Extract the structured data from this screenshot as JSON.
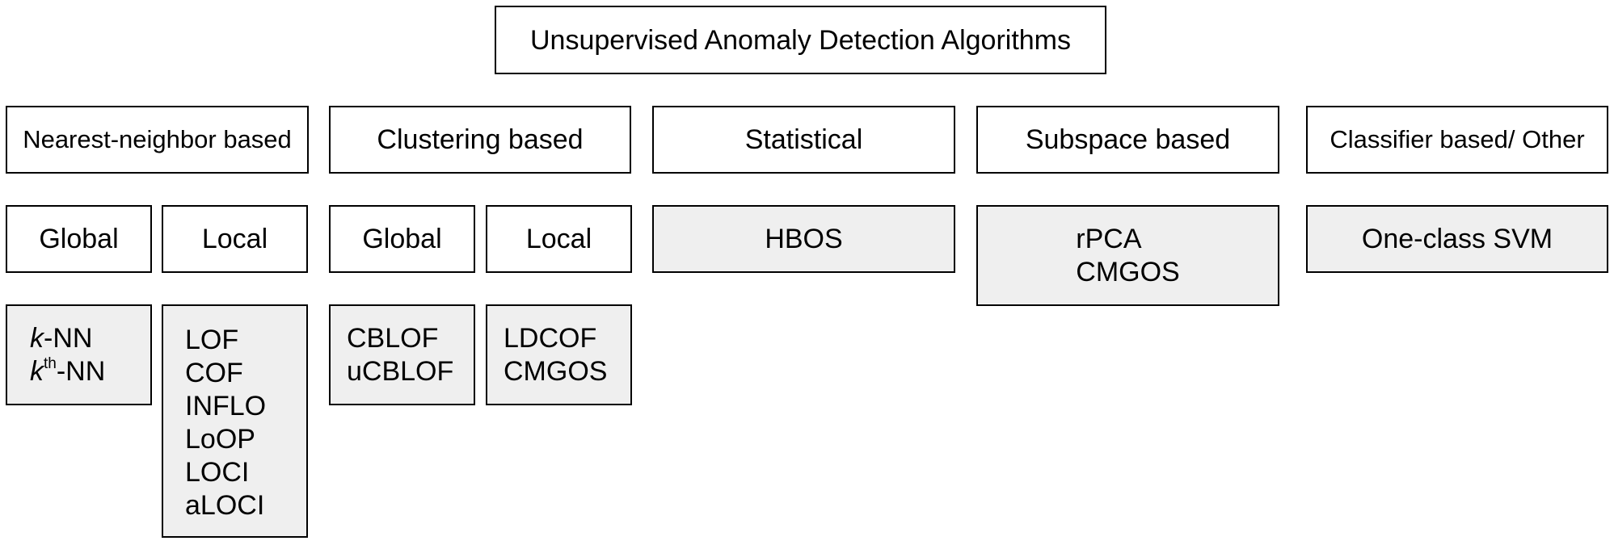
{
  "root": {
    "label": "Unsupervised Anomaly Detection Algorithms"
  },
  "categories": [
    {
      "label": "Nearest-neighbor based"
    },
    {
      "label": "Clustering based"
    },
    {
      "label": "Statistical"
    },
    {
      "label": "Subspace based"
    },
    {
      "label": "Classifier based/ Other"
    }
  ],
  "nn": {
    "global": {
      "label": "Global",
      "algorithms": [
        {
          "var": "k",
          "sup": "",
          "rest": "-NN"
        },
        {
          "var": "k",
          "sup": "th",
          "rest": "-NN"
        }
      ]
    },
    "local": {
      "label": "Local",
      "algorithms": [
        "LOF",
        "COF",
        "INFLO",
        "LoOP",
        "LOCI",
        "aLOCI"
      ]
    }
  },
  "clustering": {
    "global": {
      "label": "Global",
      "algorithms": [
        "CBLOF",
        "uCBLOF"
      ]
    },
    "local": {
      "label": "Local",
      "algorithms": [
        "LDCOF",
        "CMGOS"
      ]
    }
  },
  "statistical": {
    "algorithms": [
      "HBOS"
    ]
  },
  "subspace": {
    "algorithms": [
      "rPCA",
      "CMGOS"
    ]
  },
  "classifier": {
    "algorithms": [
      "One-class SVM"
    ]
  }
}
